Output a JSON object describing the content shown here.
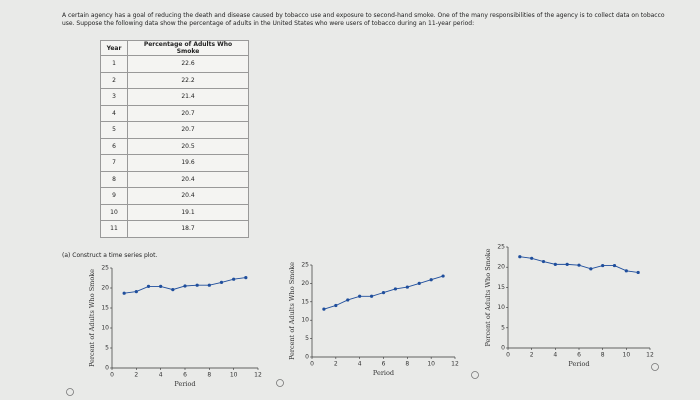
{
  "problem": {
    "text": "A certain agency has a goal of reducing the death and disease caused by tobacco use and exposure to second-hand smoke. One of the many responsibilities of the agency is to collect data on tobacco use. Suppose the following data show the percentage of adults in the United States who were users of tobacco during an 11-year period:",
    "part_a": "(a) Construct a time series plot."
  },
  "table": {
    "header": [
      "Year",
      "Percentage of Adults Who Smoke"
    ],
    "rows": [
      [
        1,
        22.6
      ],
      [
        2,
        22.2
      ],
      [
        3,
        21.4
      ],
      [
        4,
        20.7
      ],
      [
        5,
        20.7
      ],
      [
        6,
        20.5
      ],
      [
        7,
        19.6
      ],
      [
        8,
        20.4
      ],
      [
        9,
        20.4
      ],
      [
        10,
        19.1
      ],
      [
        11,
        18.7
      ]
    ]
  },
  "chart_data": [
    {
      "type": "line",
      "xlabel": "Period",
      "ylabel": "Percent of Adults Who Smoke",
      "color": "#1f4e9c",
      "x": [
        1,
        2,
        3,
        4,
        5,
        6,
        7,
        8,
        9,
        10,
        11
      ],
      "values": [
        18.7,
        19.1,
        20.4,
        20.4,
        19.6,
        20.5,
        20.7,
        20.7,
        21.4,
        22.2,
        22.6
      ],
      "xlim": [
        0,
        12
      ],
      "ylim": [
        0,
        25
      ],
      "xticks": [
        0,
        2,
        4,
        6,
        8,
        10,
        12
      ],
      "yticks": [
        0,
        5,
        10,
        15,
        20,
        25
      ]
    },
    {
      "type": "line",
      "xlabel": "Period",
      "ylabel": "Percent of Adults Who Smoke",
      "color": "#1f4e9c",
      "x": [
        1,
        2,
        3,
        4,
        5,
        6,
        7,
        8,
        9,
        10,
        11
      ],
      "values": [
        13,
        14,
        15.5,
        16.5,
        16.5,
        17.5,
        18.5,
        19,
        20,
        21,
        22
      ],
      "xlim": [
        0,
        12
      ],
      "ylim": [
        0,
        25
      ],
      "xticks": [
        0,
        2,
        4,
        6,
        8,
        10,
        12
      ],
      "yticks": [
        0,
        5,
        10,
        15,
        20,
        25
      ]
    },
    {
      "type": "line",
      "xlabel": "Period",
      "ylabel": "Percent of Adults Who Smoke",
      "color": "#1f4e9c",
      "x": [
        1,
        2,
        3,
        4,
        5,
        6,
        7,
        8,
        9,
        10,
        11
      ],
      "values": [
        22.6,
        22.2,
        21.4,
        20.7,
        20.7,
        20.5,
        19.6,
        20.4,
        20.4,
        19.1,
        18.7
      ],
      "xlim": [
        0,
        12
      ],
      "ylim": [
        0,
        25
      ],
      "xticks": [
        0,
        2,
        4,
        6,
        8,
        10,
        12
      ],
      "yticks": [
        0,
        5,
        10,
        15,
        20,
        25
      ]
    }
  ]
}
